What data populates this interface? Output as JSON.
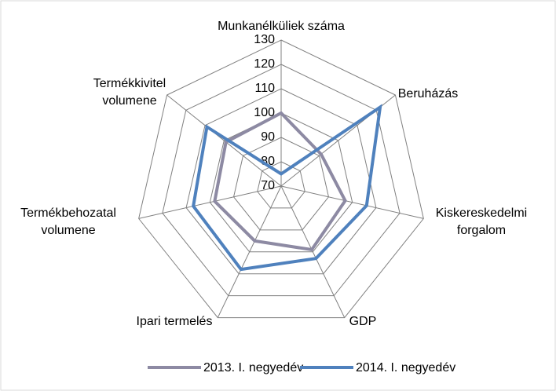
{
  "chart_data": {
    "type": "radar",
    "categories": [
      "Munkanélküliek száma",
      "Beruházás",
      "Kiskereskedelmi forgalom",
      "GDP",
      "Ipari termelés",
      "Termékbehozatal volumene",
      "Termékkivitel volumene"
    ],
    "series": [
      {
        "name": "2013. I. negyedév",
        "color": "#8d8aa3",
        "values": [
          100,
          91,
          97,
          99,
          95,
          98,
          99
        ]
      },
      {
        "name": "2014. I. negyedév",
        "color": "#4f81bd",
        "values": [
          75,
          122,
          106,
          103,
          108,
          107,
          109
        ]
      }
    ],
    "ylim": [
      70,
      130
    ],
    "yticks": [
      70,
      80,
      90,
      100,
      110,
      120,
      130
    ],
    "grid": true,
    "legend": "bottom"
  }
}
